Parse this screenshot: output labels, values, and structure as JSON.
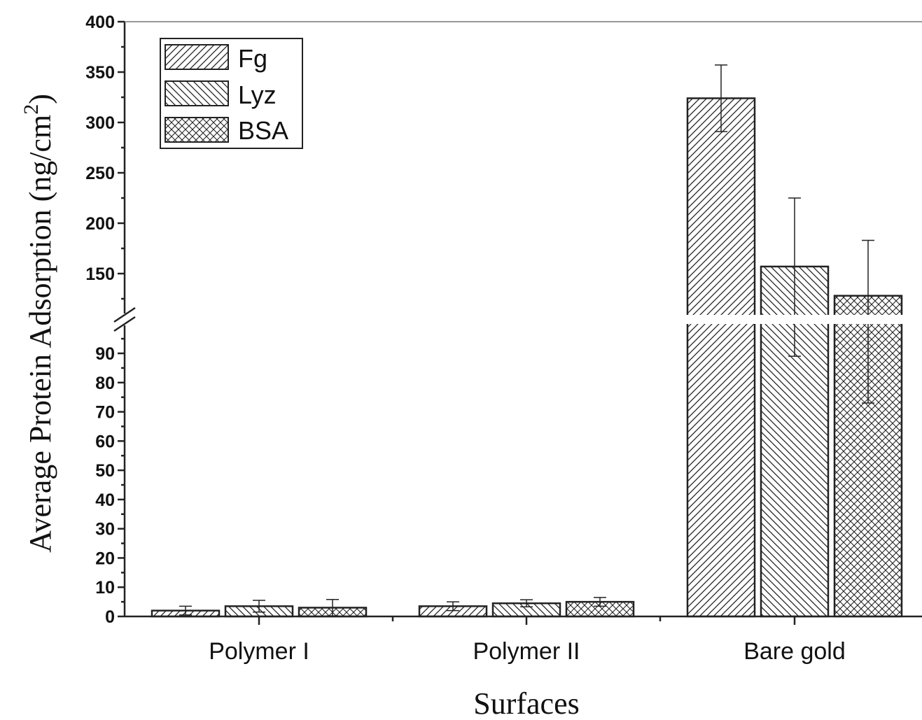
{
  "chart_data": {
    "type": "bar",
    "xlabel": "Surfaces",
    "ylabel_main": "Average Protein Adsorption (ng/cm",
    "ylabel_sup": "2",
    "ylabel_close": ")",
    "categories": [
      "Polymer I",
      "Polymer II",
      "Bare gold"
    ],
    "series": [
      {
        "name": "Fg",
        "pattern": "hatch-fwd",
        "values": [
          2,
          3.5,
          324
        ],
        "errors": [
          1.5,
          1.5,
          33
        ]
      },
      {
        "name": "Lyz",
        "pattern": "hatch-back",
        "values": [
          3.5,
          4.5,
          157
        ],
        "errors": [
          2,
          1.2,
          68
        ]
      },
      {
        "name": "BSA",
        "pattern": "crosshatch",
        "values": [
          3,
          5,
          128
        ],
        "errors": [
          2.8,
          1.5,
          55
        ]
      }
    ],
    "y_axis": {
      "broken": true,
      "lower_segment": {
        "range": [
          0,
          98
        ],
        "ticks": [
          0,
          10,
          20,
          30,
          40,
          50,
          60,
          70,
          80,
          90
        ]
      },
      "upper_segment": {
        "range": [
          120,
          400
        ],
        "ticks": [
          150,
          200,
          250,
          300,
          350,
          400
        ]
      }
    },
    "legend_position": "top-left",
    "colors": {
      "stroke": "#222222",
      "fill": "#ffffff"
    }
  }
}
